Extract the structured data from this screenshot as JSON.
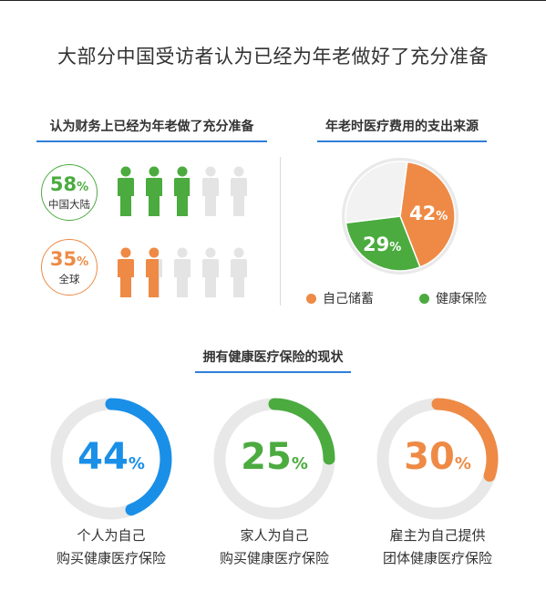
{
  "title": "大部分中国受访者认为已经为年老做好了充分准备",
  "sections": {
    "left": {
      "title": "认为财务上已经为年老做了充分准备"
    },
    "right": {
      "title": "年老时医疗费用的支出来源"
    },
    "bottom": {
      "title": "拥有健康医疗保险的现状"
    }
  },
  "percent_sign": "%",
  "chart_data": [
    {
      "type": "bar",
      "title": "认为财务上已经为年老做了充分准备",
      "categories": [
        "中国大陆",
        "全球"
      ],
      "values": [
        58,
        35
      ],
      "unit": "%",
      "colors": [
        "#4bab3f",
        "#ee8a45"
      ],
      "display": "pictogram",
      "figures_total": 5
    },
    {
      "type": "pie",
      "title": "年老时医疗费用的支出来源",
      "slices": [
        {
          "name": "自己储蓄",
          "value": 42,
          "color": "#ee8a45"
        },
        {
          "name": "健康保险",
          "value": 29,
          "color": "#4bab3f"
        },
        {
          "name": "",
          "value": 29,
          "color": "#f2f2f2"
        }
      ],
      "unit": "%"
    },
    {
      "type": "bar",
      "title": "拥有健康医疗保险的现状",
      "display": "ring-gauges",
      "unit": "%",
      "items": [
        {
          "value": 44,
          "label_line1": "个人为自己",
          "label_line2": "购买健康医疗保险",
          "color": "#1a8fe8"
        },
        {
          "value": 25,
          "label_line1": "家人为自己",
          "label_line2": "购买健康医疗保险",
          "color": "#4bab3f"
        },
        {
          "value": 30,
          "label_line1": "雇主为自己提供",
          "label_line2": "团体健康医疗保险",
          "color": "#ee8a45"
        }
      ]
    }
  ]
}
